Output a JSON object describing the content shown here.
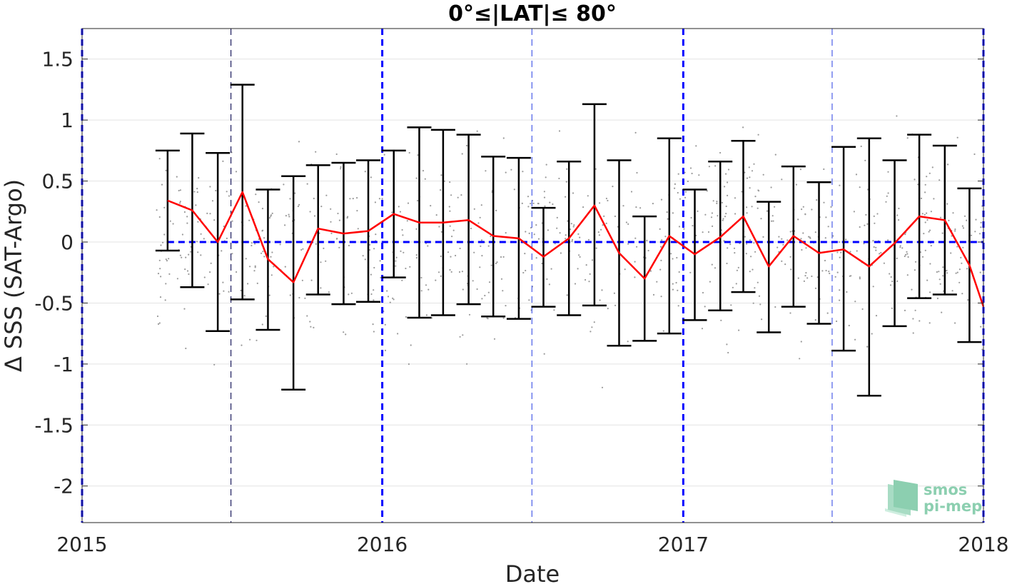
{
  "chart_data": {
    "type": "line",
    "title": "0°≤|LAT|≤ 80°",
    "xlabel": "Date",
    "ylabel": "Δ SSS (SAT-Argo)",
    "xlim": [
      "2015-01-01",
      "2018-01-01"
    ],
    "ylim": [
      -2.3,
      1.75
    ],
    "x_ticks": [
      "2015",
      "2016",
      "2017",
      "2018"
    ],
    "y_ticks": [
      "1.5",
      "1",
      "0.5",
      "0",
      "-0.5",
      "-1",
      "-1.5",
      "-2"
    ],
    "grid": true,
    "zero_line": 0,
    "year_dividers": [
      "2015-01-01",
      "2016-01-01",
      "2017-01-01",
      "2018-01-01"
    ],
    "half_year_dividers": [
      "2015-07-01",
      "2016-07-01",
      "2017-07-01"
    ],
    "series": [
      {
        "type": "line-with-errorbars",
        "color": "#ff0000",
        "errorbar_color": "#000000",
        "x": [
          "2015-04-15",
          "2015-05-15",
          "2015-06-15",
          "2015-07-15",
          "2015-08-15",
          "2015-09-15",
          "2015-10-15",
          "2015-11-15",
          "2015-12-15",
          "2016-01-15",
          "2016-02-15",
          "2016-03-15",
          "2016-04-15",
          "2016-05-15",
          "2016-06-15",
          "2016-07-15",
          "2016-08-15",
          "2016-09-15",
          "2016-10-15",
          "2016-11-15",
          "2016-12-15",
          "2017-01-15",
          "2017-02-15",
          "2017-03-15",
          "2017-04-15",
          "2017-05-15",
          "2017-06-15",
          "2017-07-15",
          "2017-08-15",
          "2017-09-15",
          "2017-10-15",
          "2017-11-15",
          "2017-12-15",
          "2018-01-01"
        ],
        "y": [
          0.34,
          0.26,
          0.0,
          0.41,
          -0.14,
          -0.33,
          0.11,
          0.07,
          0.09,
          0.23,
          0.16,
          0.16,
          0.18,
          0.05,
          0.03,
          -0.12,
          0.03,
          0.3,
          -0.09,
          -0.3,
          0.05,
          -0.1,
          0.04,
          0.21,
          -0.2,
          0.05,
          -0.09,
          -0.06,
          -0.2,
          -0.01,
          0.21,
          0.18,
          -0.19,
          -0.53
        ],
        "upper": [
          0.75,
          0.89,
          0.73,
          1.29,
          0.43,
          0.54,
          0.63,
          0.65,
          0.67,
          0.75,
          0.94,
          0.92,
          0.88,
          0.7,
          0.69,
          0.28,
          0.66,
          1.13,
          0.67,
          0.21,
          0.85,
          0.43,
          0.66,
          0.83,
          0.33,
          0.62,
          0.49,
          0.78,
          0.85,
          0.67,
          0.88,
          0.79,
          0.44,
          null
        ],
        "lower": [
          -0.07,
          -0.37,
          -0.73,
          -0.47,
          -0.72,
          -1.21,
          -0.43,
          -0.51,
          -0.49,
          -0.29,
          -0.62,
          -0.6,
          -0.51,
          -0.61,
          -0.63,
          -0.53,
          -0.6,
          -0.52,
          -0.85,
          -0.81,
          -0.75,
          -0.64,
          -0.56,
          -0.41,
          -0.74,
          -0.53,
          -0.67,
          -0.89,
          -1.26,
          -0.69,
          -0.46,
          -0.43,
          -0.82,
          null
        ]
      }
    ],
    "scatter_background": {
      "color": "#9a9a9a",
      "description_count": 900
    }
  },
  "logo": {
    "line1": "smos",
    "line2": "pi-mep"
  },
  "colors": {
    "mean_line": "#ff0000",
    "errorbar": "#000000",
    "divider": "#0000ff",
    "grid": "#e0e0e0"
  }
}
